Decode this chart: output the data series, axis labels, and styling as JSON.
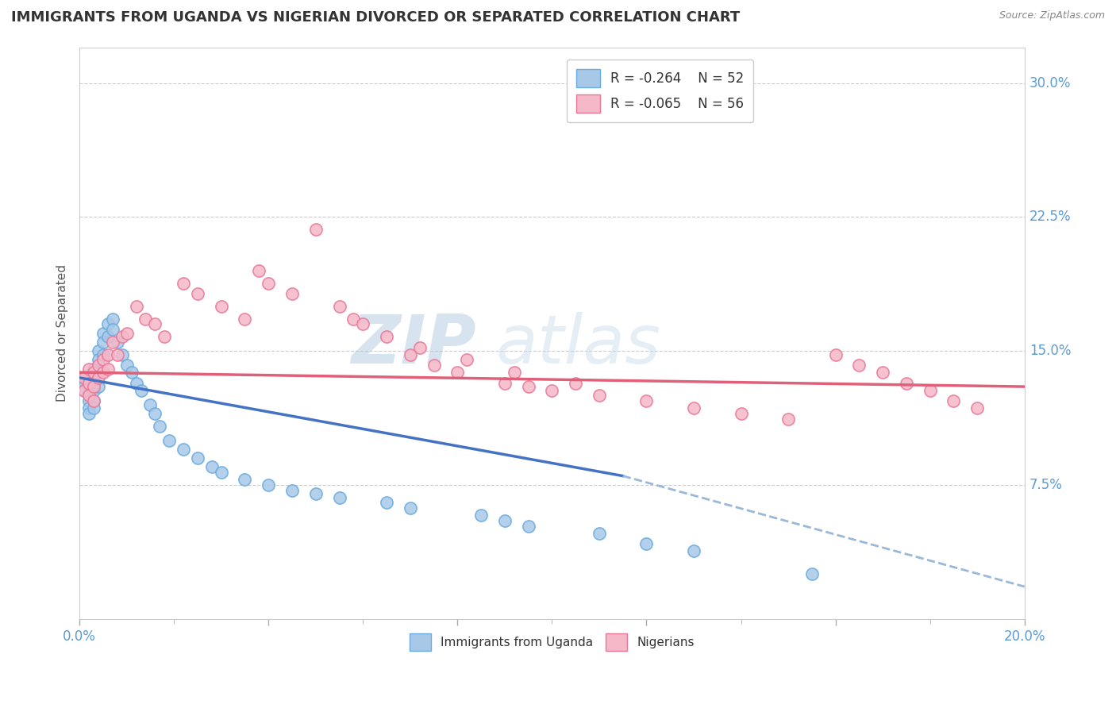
{
  "title": "IMMIGRANTS FROM UGANDA VS NIGERIAN DIVORCED OR SEPARATED CORRELATION CHART",
  "source_text": "Source: ZipAtlas.com",
  "ylabel": "Divorced or Separated",
  "xlim": [
    0.0,
    0.2
  ],
  "ylim": [
    0.0,
    0.32
  ],
  "xticks": [
    0.0,
    0.04,
    0.08,
    0.12,
    0.16,
    0.2
  ],
  "xticklabels": [
    "0.0%",
    "",
    "",
    "",
    "",
    "20.0%"
  ],
  "yticks": [
    0.075,
    0.15,
    0.225,
    0.3
  ],
  "yticklabels": [
    "7.5%",
    "15.0%",
    "22.5%",
    "30.0%"
  ],
  "grid_color": "#cccccc",
  "bg_color": "#ffffff",
  "legend_R1": "R = -0.264",
  "legend_N1": "N = 52",
  "legend_R2": "R = -0.065",
  "legend_N2": "N = 56",
  "color_uganda": "#a8c8e8",
  "color_nigeria": "#f5b8c8",
  "edge_uganda": "#6aabe0",
  "edge_nigeria": "#e87898",
  "line_color_uganda": "#4472c4",
  "line_color_nigeria": "#e0607a",
  "dashed_color": "#9ab8d8",
  "watermark_color": "#d0dce8",
  "uganda_x": [
    0.001,
    0.001,
    0.001,
    0.002,
    0.002,
    0.002,
    0.002,
    0.002,
    0.003,
    0.003,
    0.003,
    0.003,
    0.003,
    0.004,
    0.004,
    0.004,
    0.004,
    0.005,
    0.005,
    0.005,
    0.006,
    0.006,
    0.007,
    0.007,
    0.008,
    0.009,
    0.01,
    0.011,
    0.012,
    0.013,
    0.015,
    0.016,
    0.017,
    0.019,
    0.022,
    0.025,
    0.028,
    0.03,
    0.035,
    0.04,
    0.045,
    0.05,
    0.055,
    0.065,
    0.07,
    0.085,
    0.09,
    0.095,
    0.11,
    0.12,
    0.13,
    0.155
  ],
  "uganda_y": [
    0.135,
    0.13,
    0.128,
    0.132,
    0.125,
    0.122,
    0.118,
    0.115,
    0.14,
    0.135,
    0.128,
    0.122,
    0.118,
    0.15,
    0.145,
    0.138,
    0.13,
    0.16,
    0.155,
    0.148,
    0.165,
    0.158,
    0.168,
    0.162,
    0.155,
    0.148,
    0.142,
    0.138,
    0.132,
    0.128,
    0.12,
    0.115,
    0.108,
    0.1,
    0.095,
    0.09,
    0.085,
    0.082,
    0.078,
    0.075,
    0.072,
    0.07,
    0.068,
    0.065,
    0.062,
    0.058,
    0.055,
    0.052,
    0.048,
    0.042,
    0.038,
    0.025
  ],
  "nigeria_x": [
    0.001,
    0.001,
    0.002,
    0.002,
    0.002,
    0.003,
    0.003,
    0.003,
    0.004,
    0.004,
    0.005,
    0.005,
    0.006,
    0.006,
    0.007,
    0.008,
    0.009,
    0.01,
    0.012,
    0.014,
    0.016,
    0.018,
    0.022,
    0.025,
    0.03,
    0.035,
    0.038,
    0.04,
    0.045,
    0.05,
    0.055,
    0.058,
    0.06,
    0.065,
    0.07,
    0.075,
    0.08,
    0.09,
    0.095,
    0.1,
    0.11,
    0.12,
    0.13,
    0.14,
    0.15,
    0.16,
    0.165,
    0.17,
    0.175,
    0.18,
    0.185,
    0.19,
    0.072,
    0.082,
    0.092,
    0.105
  ],
  "nigeria_y": [
    0.135,
    0.128,
    0.14,
    0.132,
    0.125,
    0.138,
    0.13,
    0.122,
    0.142,
    0.135,
    0.145,
    0.138,
    0.148,
    0.14,
    0.155,
    0.148,
    0.158,
    0.16,
    0.175,
    0.168,
    0.165,
    0.158,
    0.188,
    0.182,
    0.175,
    0.168,
    0.195,
    0.188,
    0.182,
    0.218,
    0.175,
    0.168,
    0.165,
    0.158,
    0.148,
    0.142,
    0.138,
    0.132,
    0.13,
    0.128,
    0.125,
    0.122,
    0.118,
    0.115,
    0.112,
    0.148,
    0.142,
    0.138,
    0.132,
    0.128,
    0.122,
    0.118,
    0.152,
    0.145,
    0.138,
    0.132
  ]
}
